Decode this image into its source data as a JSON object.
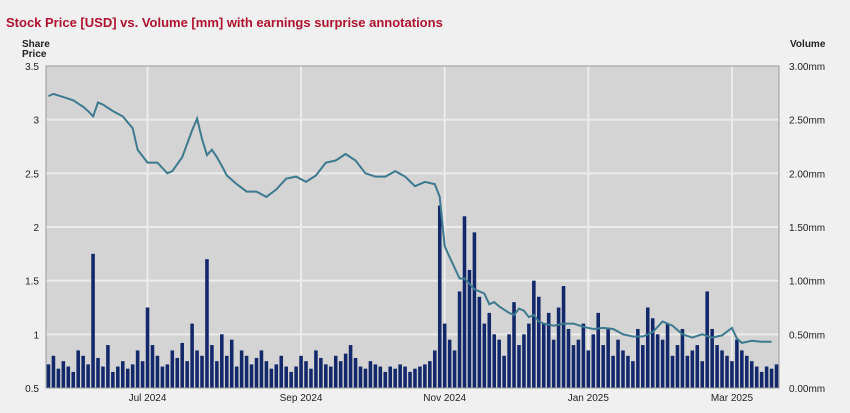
{
  "chart_data": {
    "type": "line+bar",
    "title": "Stock Price [USD] vs. Volume [mm] with earnings surprise annotations",
    "y_left_label": [
      "Share",
      "Price"
    ],
    "y_right_label": "Volume",
    "y_left_ticks": [
      "3.5",
      "3",
      "2.5",
      "2",
      "1.5",
      "1",
      "0.5"
    ],
    "y_right_ticks": [
      "3.00mm",
      "2.50mm",
      "2.00mm",
      "1.50mm",
      "1.00mm",
      "0.50mm",
      "0.00mm"
    ],
    "x_ticks": [
      "Jul 2024",
      "Sep 2024",
      "Nov 2024",
      "Jan 2025",
      "Mar 2025"
    ],
    "y_left_range": [
      0.5,
      3.5
    ],
    "y_right_range": [
      0,
      3.0
    ],
    "grid": true,
    "colors": {
      "price_line": "#3d7a8f",
      "volume_bars": "#13286b",
      "plot_bg": "#d4d4d4",
      "grid": "#ececec",
      "title": "#b0122e"
    },
    "price_series": {
      "name": "",
      "points": [
        [
          0,
          3.22
        ],
        [
          1,
          3.24
        ],
        [
          3,
          3.21
        ],
        [
          5,
          3.18
        ],
        [
          7,
          3.12
        ],
        [
          8,
          3.08
        ],
        [
          9,
          3.03
        ],
        [
          10,
          3.16
        ],
        [
          11,
          3.14
        ],
        [
          13,
          3.08
        ],
        [
          15,
          3.03
        ],
        [
          17,
          2.92
        ],
        [
          18,
          2.72
        ],
        [
          20,
          2.6
        ],
        [
          22,
          2.6
        ],
        [
          23,
          2.55
        ],
        [
          24,
          2.5
        ],
        [
          25,
          2.52
        ],
        [
          27,
          2.65
        ],
        [
          29,
          2.9
        ],
        [
          30,
          3.01
        ],
        [
          31,
          2.82
        ],
        [
          32,
          2.67
        ],
        [
          33,
          2.72
        ],
        [
          34,
          2.65
        ],
        [
          35,
          2.57
        ],
        [
          36,
          2.48
        ],
        [
          38,
          2.4
        ],
        [
          40,
          2.33
        ],
        [
          42,
          2.33
        ],
        [
          44,
          2.28
        ],
        [
          46,
          2.35
        ],
        [
          48,
          2.45
        ],
        [
          50,
          2.47
        ],
        [
          52,
          2.42
        ],
        [
          54,
          2.48
        ],
        [
          56,
          2.6
        ],
        [
          58,
          2.62
        ],
        [
          60,
          2.68
        ],
        [
          62,
          2.62
        ],
        [
          64,
          2.5
        ],
        [
          66,
          2.47
        ],
        [
          68,
          2.47
        ],
        [
          70,
          2.52
        ],
        [
          72,
          2.47
        ],
        [
          74,
          2.38
        ],
        [
          76,
          2.42
        ],
        [
          78,
          2.4
        ],
        [
          79,
          2.28
        ],
        [
          80,
          1.82
        ],
        [
          81,
          1.72
        ],
        [
          82,
          1.62
        ],
        [
          83,
          1.52
        ],
        [
          84,
          1.52
        ],
        [
          85,
          1.47
        ],
        [
          86,
          1.42
        ],
        [
          88,
          1.38
        ],
        [
          89,
          1.28
        ],
        [
          90,
          1.3
        ],
        [
          91,
          1.26
        ],
        [
          93,
          1.2
        ],
        [
          94,
          1.18
        ],
        [
          95,
          1.24
        ],
        [
          96,
          1.22
        ],
        [
          97,
          1.16
        ],
        [
          98,
          1.18
        ],
        [
          99,
          1.12
        ],
        [
          100,
          1.1
        ],
        [
          102,
          1.08
        ],
        [
          104,
          1.1
        ],
        [
          106,
          1.1
        ],
        [
          108,
          1.07
        ],
        [
          110,
          1.05
        ],
        [
          112,
          1.06
        ],
        [
          114,
          1.05
        ],
        [
          116,
          1.0
        ],
        [
          118,
          0.98
        ],
        [
          120,
          0.98
        ],
        [
          122,
          1.02
        ],
        [
          124,
          1.12
        ],
        [
          126,
          1.08
        ],
        [
          128,
          1.0
        ],
        [
          130,
          0.97
        ],
        [
          132,
          1.0
        ],
        [
          134,
          0.97
        ],
        [
          136,
          0.99
        ],
        [
          138,
          1.06
        ],
        [
          139,
          0.96
        ],
        [
          140,
          0.92
        ],
        [
          142,
          0.94
        ],
        [
          144,
          0.93
        ],
        [
          146,
          0.93
        ]
      ]
    },
    "volume_series": {
      "name": "",
      "values": [
        0.22,
        0.3,
        0.18,
        0.25,
        0.2,
        0.15,
        0.35,
        0.3,
        0.22,
        1.25,
        0.28,
        0.2,
        0.4,
        0.15,
        0.2,
        0.25,
        0.18,
        0.22,
        0.35,
        0.25,
        0.75,
        0.4,
        0.3,
        0.2,
        0.22,
        0.35,
        0.28,
        0.42,
        0.25,
        0.6,
        0.35,
        0.3,
        1.2,
        0.4,
        0.25,
        0.5,
        0.3,
        0.45,
        0.2,
        0.35,
        0.3,
        0.22,
        0.28,
        0.35,
        0.25,
        0.18,
        0.22,
        0.3,
        0.2,
        0.15,
        0.2,
        0.3,
        0.25,
        0.18,
        0.35,
        0.28,
        0.22,
        0.2,
        0.3,
        0.25,
        0.32,
        0.4,
        0.28,
        0.2,
        0.18,
        0.25,
        0.22,
        0.2,
        0.15,
        0.2,
        0.18,
        0.22,
        0.2,
        0.15,
        0.18,
        0.2,
        0.22,
        0.25,
        0.35,
        1.7,
        0.6,
        0.45,
        0.35,
        0.9,
        1.6,
        1.1,
        1.45,
        0.85,
        0.6,
        0.7,
        0.5,
        0.45,
        0.3,
        0.5,
        0.8,
        0.4,
        0.5,
        0.6,
        1.0,
        0.85,
        0.6,
        0.7,
        0.45,
        0.75,
        0.95,
        0.55,
        0.4,
        0.45,
        0.6,
        0.35,
        0.5,
        0.7,
        0.4,
        0.55,
        0.3,
        0.45,
        0.35,
        0.3,
        0.25,
        0.55,
        0.4,
        0.75,
        0.65,
        0.5,
        0.45,
        0.6,
        0.3,
        0.4,
        0.55,
        0.3,
        0.35,
        0.4,
        0.25,
        0.9,
        0.55,
        0.4,
        0.35,
        0.3,
        0.25,
        0.45,
        0.35,
        0.3,
        0.25,
        0.2,
        0.15,
        0.2,
        0.18,
        0.22
      ]
    }
  }
}
